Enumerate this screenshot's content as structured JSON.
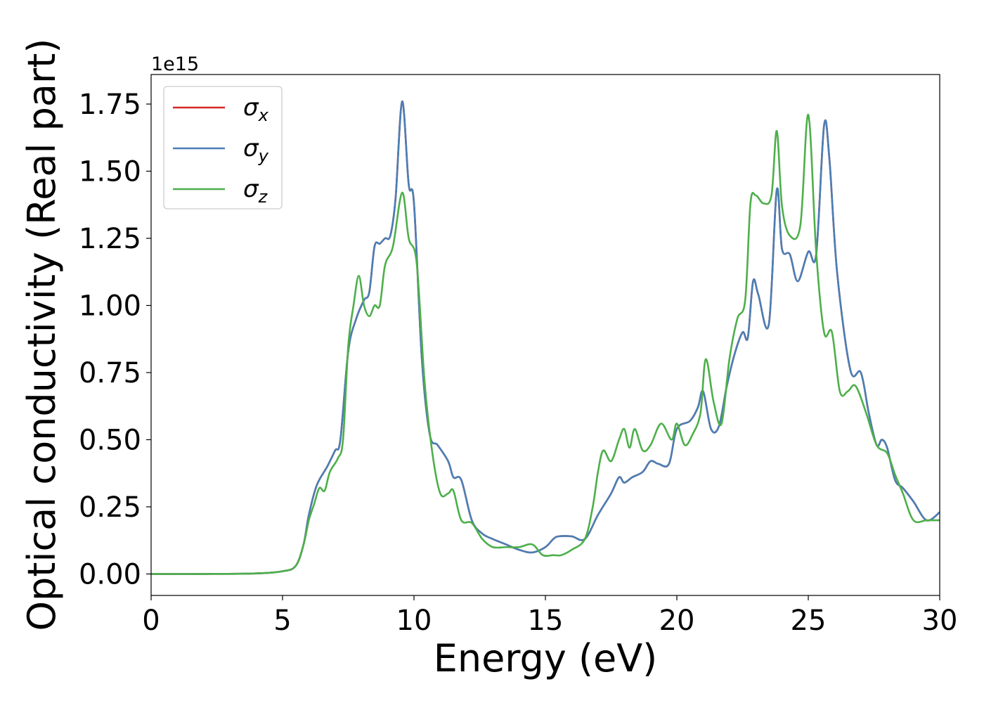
{
  "chart_data": {
    "type": "line",
    "xlabel": "Energy (eV)",
    "ylabel": "Optical conductivity (Real part)",
    "offset_text": "1e15",
    "xlim": [
      0,
      30
    ],
    "ylim": [
      -0.08,
      1.86
    ],
    "x_ticks": [
      0,
      5,
      10,
      15,
      20,
      25,
      30
    ],
    "y_ticks": [
      0.0,
      0.25,
      0.5,
      0.75,
      1.0,
      1.25,
      1.5,
      1.75
    ],
    "y_tick_labels": [
      "0.00",
      "0.25",
      "0.50",
      "0.75",
      "1.00",
      "1.25",
      "1.50",
      "1.75"
    ],
    "legend_position": "top-left",
    "grid": false,
    "series": [
      {
        "name": "σx",
        "symbol": "σ",
        "sub": "x",
        "color": "#d62728",
        "x": [
          0,
          2,
          4,
          5,
          5.5,
          5.8,
          6,
          6.3,
          6.7,
          7,
          7.2,
          7.5,
          7.8,
          8.1,
          8.3,
          8.5,
          8.7,
          8.9,
          9.1,
          9.3,
          9.55,
          9.8,
          10,
          10.3,
          10.6,
          10.9,
          11.3,
          11.5,
          11.8,
          12.2,
          12.6,
          13,
          13.5,
          14,
          14.5,
          15,
          15.3,
          15.5,
          16,
          16.5,
          17,
          17.5,
          17.8,
          18,
          18.3,
          18.7,
          19,
          19.3,
          19.7,
          20,
          20.5,
          20.8,
          21,
          21.3,
          21.6,
          21.9,
          22.2,
          22.5,
          22.7,
          22.9,
          23.1,
          23.5,
          23.8,
          24,
          24.3,
          24.6,
          25,
          25.3,
          25.6,
          25.8,
          26.1,
          26.6,
          27,
          27.3,
          27.6,
          27.8,
          28,
          28.3,
          28.6,
          29,
          29.5,
          30
        ],
        "values": [
          0,
          0,
          0.002,
          0.01,
          0.03,
          0.11,
          0.22,
          0.33,
          0.4,
          0.46,
          0.5,
          0.83,
          0.95,
          1.02,
          1.05,
          1.22,
          1.23,
          1.25,
          1.26,
          1.4,
          1.76,
          1.45,
          1.38,
          0.8,
          0.52,
          0.48,
          0.42,
          0.36,
          0.35,
          0.2,
          0.15,
          0.13,
          0.11,
          0.09,
          0.08,
          0.1,
          0.13,
          0.14,
          0.14,
          0.13,
          0.22,
          0.3,
          0.36,
          0.34,
          0.36,
          0.38,
          0.42,
          0.41,
          0.41,
          0.54,
          0.57,
          0.62,
          0.68,
          0.54,
          0.55,
          0.7,
          0.82,
          0.9,
          0.88,
          1.09,
          1.04,
          0.93,
          1.43,
          1.21,
          1.19,
          1.09,
          1.2,
          1.19,
          1.67,
          1.55,
          1.12,
          0.76,
          0.75,
          0.6,
          0.48,
          0.5,
          0.47,
          0.35,
          0.32,
          0.27,
          0.2,
          0.23
        ]
      },
      {
        "name": "σy",
        "symbol": "σ",
        "sub": "y",
        "color": "#4a7fb5",
        "x": [
          0,
          2,
          4,
          5,
          5.5,
          5.8,
          6,
          6.3,
          6.7,
          7,
          7.2,
          7.5,
          7.8,
          8.1,
          8.3,
          8.5,
          8.7,
          8.9,
          9.1,
          9.3,
          9.55,
          9.8,
          10,
          10.3,
          10.6,
          10.9,
          11.3,
          11.5,
          11.8,
          12.2,
          12.6,
          13,
          13.5,
          14,
          14.5,
          15,
          15.3,
          15.5,
          16,
          16.5,
          17,
          17.5,
          17.8,
          18,
          18.3,
          18.7,
          19,
          19.3,
          19.7,
          20,
          20.5,
          20.8,
          21,
          21.3,
          21.6,
          21.9,
          22.2,
          22.5,
          22.7,
          22.9,
          23.1,
          23.5,
          23.8,
          24,
          24.3,
          24.6,
          25,
          25.3,
          25.6,
          25.8,
          26.1,
          26.6,
          27,
          27.3,
          27.6,
          27.8,
          28,
          28.3,
          28.6,
          29,
          29.5,
          30
        ],
        "values": [
          0,
          0,
          0.002,
          0.01,
          0.03,
          0.11,
          0.22,
          0.33,
          0.4,
          0.46,
          0.5,
          0.83,
          0.95,
          1.02,
          1.05,
          1.22,
          1.23,
          1.25,
          1.26,
          1.4,
          1.76,
          1.45,
          1.38,
          0.8,
          0.52,
          0.48,
          0.42,
          0.36,
          0.35,
          0.2,
          0.15,
          0.13,
          0.11,
          0.09,
          0.08,
          0.1,
          0.13,
          0.14,
          0.14,
          0.13,
          0.22,
          0.3,
          0.36,
          0.34,
          0.36,
          0.38,
          0.42,
          0.41,
          0.41,
          0.54,
          0.57,
          0.62,
          0.68,
          0.54,
          0.55,
          0.7,
          0.82,
          0.9,
          0.88,
          1.09,
          1.04,
          0.93,
          1.43,
          1.21,
          1.19,
          1.09,
          1.2,
          1.19,
          1.67,
          1.55,
          1.12,
          0.76,
          0.75,
          0.6,
          0.48,
          0.5,
          0.47,
          0.35,
          0.32,
          0.27,
          0.2,
          0.23
        ]
      },
      {
        "name": "σz",
        "symbol": "σ",
        "sub": "z",
        "color": "#4daf4a",
        "x": [
          0,
          2,
          4,
          5,
          5.5,
          5.8,
          6,
          6.2,
          6.4,
          6.6,
          6.8,
          7.1,
          7.3,
          7.5,
          7.7,
          7.9,
          8.1,
          8.3,
          8.5,
          8.7,
          8.9,
          9.2,
          9.55,
          9.8,
          10.1,
          10.4,
          10.7,
          11,
          11.3,
          11.5,
          11.8,
          12.2,
          12.6,
          13,
          13.5,
          14,
          14.5,
          14.9,
          15.3,
          15.6,
          16,
          16.5,
          16.8,
          17,
          17.2,
          17.5,
          17.8,
          18,
          18.2,
          18.4,
          18.7,
          19,
          19.4,
          19.8,
          20,
          20.3,
          20.6,
          20.9,
          21.1,
          21.4,
          21.7,
          22,
          22.3,
          22.6,
          22.8,
          23,
          23.3,
          23.6,
          23.8,
          24,
          24.3,
          24.7,
          25,
          25.3,
          25.6,
          25.9,
          26.2,
          26.5,
          26.8,
          27.2,
          27.6,
          28,
          28.3,
          28.6,
          29,
          29.5,
          30
        ],
        "values": [
          0,
          0,
          0.002,
          0.01,
          0.03,
          0.11,
          0.2,
          0.26,
          0.32,
          0.31,
          0.38,
          0.43,
          0.5,
          0.85,
          1.0,
          1.11,
          1.0,
          0.96,
          1.0,
          1.0,
          1.15,
          1.22,
          1.42,
          1.25,
          1.16,
          0.72,
          0.45,
          0.3,
          0.3,
          0.31,
          0.2,
          0.19,
          0.13,
          0.1,
          0.1,
          0.1,
          0.11,
          0.07,
          0.07,
          0.07,
          0.09,
          0.13,
          0.25,
          0.38,
          0.46,
          0.42,
          0.5,
          0.54,
          0.47,
          0.54,
          0.46,
          0.48,
          0.56,
          0.5,
          0.56,
          0.48,
          0.52,
          0.6,
          0.8,
          0.64,
          0.56,
          0.8,
          0.95,
          1.02,
          1.38,
          1.41,
          1.38,
          1.41,
          1.65,
          1.37,
          1.26,
          1.3,
          1.71,
          1.2,
          0.9,
          0.9,
          0.68,
          0.68,
          0.7,
          0.6,
          0.48,
          0.45,
          0.37,
          0.3,
          0.2,
          0.2,
          0.2
        ]
      }
    ]
  }
}
